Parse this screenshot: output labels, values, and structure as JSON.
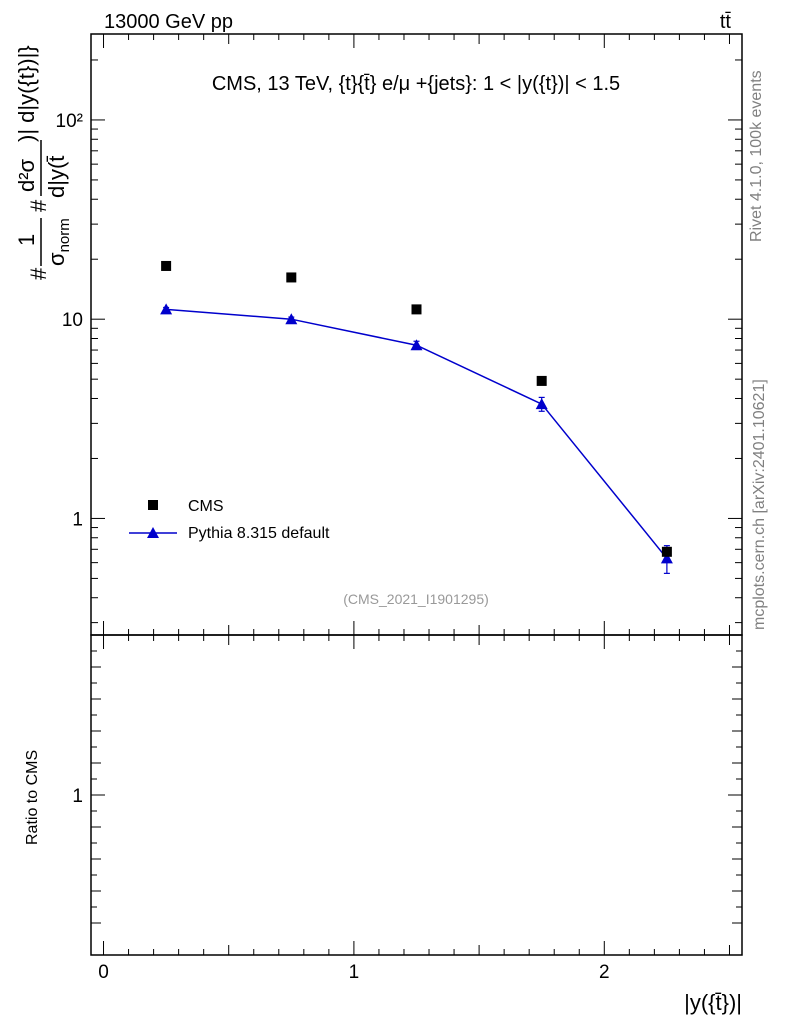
{
  "header": {
    "energy_label": "13000 GeV pp",
    "process_label": "tt̄"
  },
  "side_labels": {
    "rivet": "Rivet 4.1.0,  100k events",
    "source": "mcplots.cern.ch [arXiv:2401.10621]"
  },
  "colors": {
    "data": "#000000",
    "mc": "#0000cc",
    "watermark": "#999999",
    "side_text": "#808080"
  },
  "chart_data": [
    {
      "type": "scatter",
      "title": "CMS, 13 TeV, {t}{t̄} e/μ +{jets}: 1 < |y({t})| < 1.5",
      "watermark": "(CMS_2021_I1901295)",
      "ylabel_parts": {
        "hash1": "#",
        "one": "1",
        "sigma_norm_base": "σ",
        "sigma_norm_sub": "norm",
        "hash2": "#",
        "d2sigma_num": "d²σ",
        "d2sigma_den": "d|y(t̄",
        "suffix": ")| d|y({t})|}"
      },
      "yscale": "log",
      "xlim": [
        -0.05,
        2.55
      ],
      "ylim": [
        0.26,
        270
      ],
      "ytick_labels": [
        "1",
        "10",
        "10²"
      ],
      "legend_position": "lower-left",
      "series": [
        {
          "name": "CMS",
          "marker": "square",
          "x": [
            0.25,
            0.75,
            1.25,
            1.75,
            2.25
          ],
          "y": [
            18.5,
            16.2,
            11.2,
            4.9,
            0.68
          ],
          "yerr": [
            0.0,
            0.0,
            0.0,
            0.0,
            0.0
          ]
        },
        {
          "name": "Pythia 8.315 default",
          "marker": "triangle",
          "line": true,
          "x": [
            0.25,
            0.75,
            1.25,
            1.75,
            2.25
          ],
          "y": [
            11.2,
            10.0,
            7.4,
            3.75,
            0.63
          ],
          "yerr": [
            0.25,
            0.25,
            0.35,
            0.3,
            0.1
          ]
        }
      ]
    },
    {
      "type": "scatter",
      "ylabel": "Ratio to CMS",
      "xlabel": "|y({t̄})|",
      "xlim": [
        -0.05,
        2.55
      ],
      "ylim": [
        0.5,
        1.5
      ],
      "xtick_labels": [
        "0",
        "1",
        "2"
      ],
      "ytick_labels": [
        "1"
      ],
      "series": []
    }
  ]
}
